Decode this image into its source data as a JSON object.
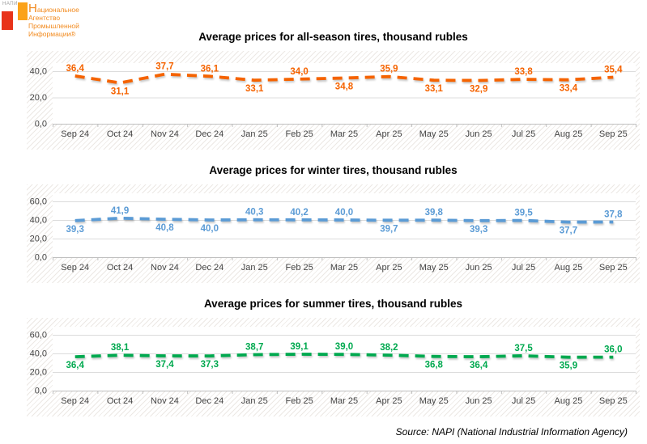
{
  "logo": {
    "mini_label": "НАПИ",
    "lines": [
      "Национальное",
      "Агентство",
      "Промышленной",
      "Информации®"
    ],
    "red_color": "#E8331A",
    "orange_color": "#FBA219",
    "text_color": "#F28A1E"
  },
  "chart_data": [
    {
      "type": "line",
      "title": "Average prices for all-season tires, thousand rubles",
      "categories": [
        "Sep 24",
        "Oct 24",
        "Nov 24",
        "Dec 24",
        "Jan 25",
        "Feb 25",
        "Mar 25",
        "Apr 25",
        "May 25",
        "Jun 25",
        "Jul 25",
        "Aug 25",
        "Sep 25"
      ],
      "values": [
        36.4,
        31.1,
        37.7,
        36.1,
        33.1,
        34.0,
        34.8,
        35.9,
        33.1,
        32.9,
        33.8,
        33.4,
        35.4
      ],
      "labels": [
        "36,4",
        "31,1",
        "37,7",
        "36,1",
        "33,1",
        "34,0",
        "34,8",
        "35,9",
        "33,1",
        "32,9",
        "33,8",
        "33,4",
        "35,4"
      ],
      "yticks": [
        0,
        20,
        40
      ],
      "ytick_labels": [
        "0,0",
        "20,0",
        "40,0"
      ],
      "ylim": [
        0,
        48
      ],
      "line_color": "#F56300",
      "line_style": "dashed",
      "grid": true,
      "legend": "none",
      "xlabel": "",
      "ylabel": ""
    },
    {
      "type": "line",
      "title": "Average prices for winter tires, thousand rubles",
      "categories": [
        "Sep 24",
        "Oct 24",
        "Nov 24",
        "Dec 24",
        "Jan 25",
        "Feb 25",
        "Mar 25",
        "Apr 25",
        "May 25",
        "Jun 25",
        "Jul 25",
        "Aug 25",
        "Sep 25"
      ],
      "values": [
        39.3,
        41.9,
        40.8,
        40.0,
        40.3,
        40.2,
        40.0,
        39.7,
        39.8,
        39.3,
        39.5,
        37.7,
        37.8
      ],
      "labels": [
        "39,3",
        "41,9",
        "40,8",
        "40,0",
        "40,3",
        "40,2",
        "40,0",
        "39,7",
        "39,8",
        "39,3",
        "39,5",
        "37,7",
        "37,8"
      ],
      "yticks": [
        0,
        20,
        40,
        60
      ],
      "ytick_labels": [
        "0,0",
        "20,0",
        "40,0",
        "60,0"
      ],
      "ylim": [
        0,
        66
      ],
      "line_color": "#5B9BD5",
      "line_style": "dashed",
      "grid": true,
      "legend": "none",
      "xlabel": "",
      "ylabel": ""
    },
    {
      "type": "line",
      "title": "Average prices for summer tires, thousand rubles",
      "categories": [
        "Sep 24",
        "Oct 24",
        "Nov 24",
        "Dec 24",
        "Jan 25",
        "Feb 25",
        "Mar 25",
        "Apr 25",
        "May 25",
        "Jun 25",
        "Jul 25",
        "Aug 25",
        "Sep 25"
      ],
      "values": [
        36.4,
        38.1,
        37.4,
        37.3,
        38.7,
        39.1,
        39.0,
        38.2,
        36.8,
        36.4,
        37.5,
        35.9,
        36.0
      ],
      "labels": [
        "36,4",
        "38,1",
        "37,4",
        "37,3",
        "38,7",
        "39,1",
        "39,0",
        "38,2",
        "36,8",
        "36,4",
        "37,5",
        "35,9",
        "36,0"
      ],
      "yticks": [
        0,
        20,
        40,
        60
      ],
      "ytick_labels": [
        "0,0",
        "20,0",
        "40,0",
        "60,0"
      ],
      "ylim": [
        0,
        66
      ],
      "line_color": "#00A94F",
      "line_style": "dashed",
      "grid": true,
      "legend": "none",
      "xlabel": "",
      "ylabel": ""
    }
  ],
  "source_note": "Source: NAPI (National Industrial Information Agency)"
}
